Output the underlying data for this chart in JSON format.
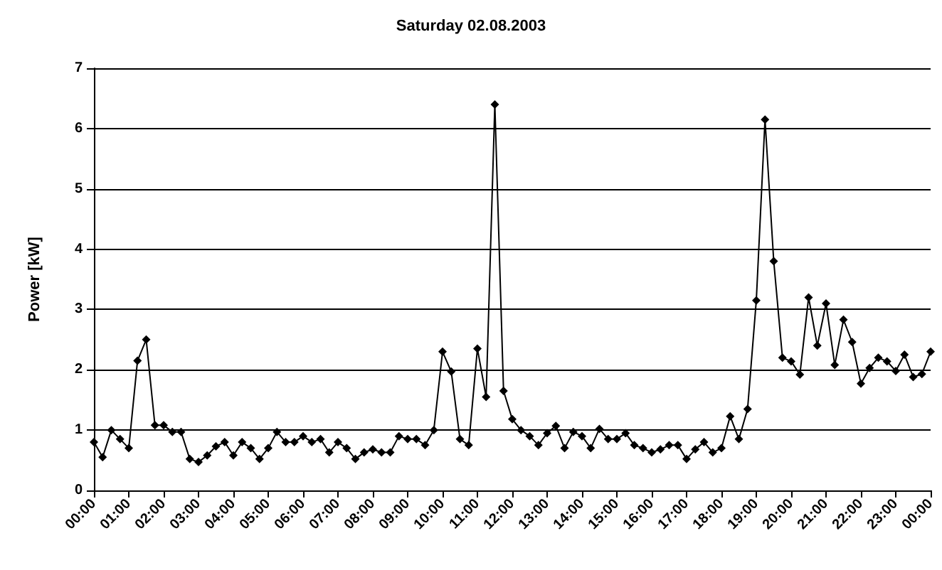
{
  "chart_data": {
    "type": "line",
    "title": "Saturday 02.08.2003",
    "ylabel": "Power [kW]",
    "x": [
      0,
      0.25,
      0.5,
      0.75,
      1,
      1.25,
      1.5,
      1.75,
      2,
      2.25,
      2.5,
      2.75,
      3,
      3.25,
      3.5,
      3.75,
      4,
      4.25,
      4.5,
      4.75,
      5,
      5.25,
      5.5,
      5.75,
      6,
      6.25,
      6.5,
      6.75,
      7,
      7.25,
      7.5,
      7.75,
      8,
      8.25,
      8.5,
      8.75,
      9,
      9.25,
      9.5,
      9.75,
      10,
      10.25,
      10.5,
      10.75,
      11,
      11.25,
      11.5,
      11.75,
      12,
      12.25,
      12.5,
      12.75,
      13,
      13.25,
      13.5,
      13.75,
      14,
      14.25,
      14.5,
      14.75,
      15,
      15.25,
      15.5,
      15.75,
      16,
      16.25,
      16.5,
      16.75,
      17,
      17.25,
      17.5,
      17.75,
      18,
      18.25,
      18.5,
      18.75,
      19,
      19.25,
      19.5,
      19.75,
      20,
      20.25,
      20.5,
      20.75,
      21,
      21.25,
      21.5,
      21.75,
      22,
      22.25,
      22.5,
      22.75,
      23,
      23.25,
      23.5,
      23.75,
      24
    ],
    "series": [
      {
        "color": "#000000",
        "values": [
          0.8,
          0.55,
          1.0,
          0.85,
          0.7,
          2.15,
          2.5,
          1.08,
          1.08,
          0.97,
          0.97,
          0.52,
          0.47,
          0.58,
          0.73,
          0.8,
          0.58,
          0.8,
          0.7,
          0.52,
          0.7,
          0.97,
          0.8,
          0.8,
          0.9,
          0.8,
          0.85,
          0.63,
          0.8,
          0.7,
          0.52,
          0.63,
          0.68,
          0.63,
          0.63,
          0.9,
          0.85,
          0.85,
          0.75,
          1.0,
          2.3,
          1.97,
          0.85,
          0.75,
          2.35,
          1.55,
          6.4,
          1.65,
          1.18,
          1.0,
          0.9,
          0.75,
          0.95,
          1.07,
          0.7,
          0.97,
          0.9,
          0.7,
          1.02,
          0.85,
          0.85,
          0.95,
          0.75,
          0.7,
          0.63,
          0.68,
          0.75,
          0.75,
          0.52,
          0.68,
          0.8,
          0.63,
          0.7,
          1.23,
          0.85,
          1.35,
          3.15,
          6.15,
          3.8,
          2.2,
          2.14,
          1.92,
          3.2,
          2.4,
          3.1,
          2.08,
          2.83,
          2.46,
          1.77,
          2.03,
          2.2,
          2.14,
          1.98,
          2.25,
          1.88,
          1.93,
          2.3
        ]
      }
    ],
    "xlim": [
      0,
      24
    ],
    "xticks": [
      {
        "value": 0,
        "label": "00:00"
      },
      {
        "value": 1,
        "label": "01:00"
      },
      {
        "value": 2,
        "label": "02:00"
      },
      {
        "value": 3,
        "label": "03:00"
      },
      {
        "value": 4,
        "label": "04:00"
      },
      {
        "value": 5,
        "label": "05:00"
      },
      {
        "value": 6,
        "label": "06:00"
      },
      {
        "value": 7,
        "label": "07:00"
      },
      {
        "value": 8,
        "label": "08:00"
      },
      {
        "value": 9,
        "label": "09:00"
      },
      {
        "value": 10,
        "label": "10:00"
      },
      {
        "value": 11,
        "label": "11:00"
      },
      {
        "value": 12,
        "label": "12:00"
      },
      {
        "value": 13,
        "label": "13:00"
      },
      {
        "value": 14,
        "label": "14:00"
      },
      {
        "value": 15,
        "label": "15:00"
      },
      {
        "value": 16,
        "label": "16:00"
      },
      {
        "value": 17,
        "label": "17:00"
      },
      {
        "value": 18,
        "label": "18:00"
      },
      {
        "value": 19,
        "label": "19:00"
      },
      {
        "value": 20,
        "label": "20:00"
      },
      {
        "value": 21,
        "label": "21:00"
      },
      {
        "value": 22,
        "label": "22:00"
      },
      {
        "value": 23,
        "label": "23:00"
      },
      {
        "value": 24,
        "label": "00:00"
      }
    ],
    "ylim": [
      0,
      7
    ],
    "yticks": [
      0,
      1,
      2,
      3,
      4,
      5,
      6,
      7
    ],
    "grid": "y",
    "marker": "diamond",
    "line_style": "solid"
  }
}
